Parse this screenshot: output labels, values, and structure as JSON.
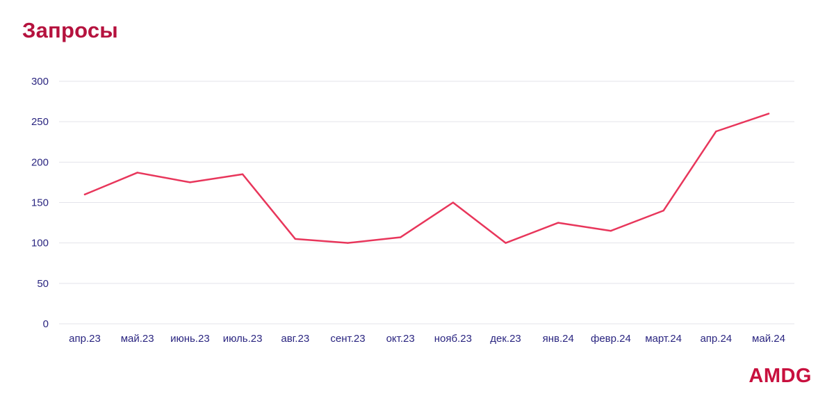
{
  "header": {
    "title": "Запросы"
  },
  "brand": {
    "logo_text": "AMDG"
  },
  "colors": {
    "title": "#b5123e",
    "line": "#e8365b",
    "tick_text": "#2a2580",
    "grid": "#e3e3ea",
    "logo": "#c8103e"
  },
  "chart_data": {
    "type": "line",
    "title": "Запросы",
    "xlabel": "",
    "ylabel": "",
    "categories": [
      "апр.23",
      "май.23",
      "июнь.23",
      "июль.23",
      "авг.23",
      "сент.23",
      "окт.23",
      "нояб.23",
      "дек.23",
      "янв.24",
      "февр.24",
      "март.24",
      "апр.24",
      "май.24"
    ],
    "values": [
      160,
      187,
      175,
      185,
      105,
      100,
      107,
      150,
      100,
      125,
      115,
      140,
      238,
      260
    ],
    "ylim": [
      0,
      300
    ],
    "yticks": [
      0,
      50,
      100,
      150,
      200,
      250,
      300
    ],
    "grid": true,
    "legend": "none"
  }
}
